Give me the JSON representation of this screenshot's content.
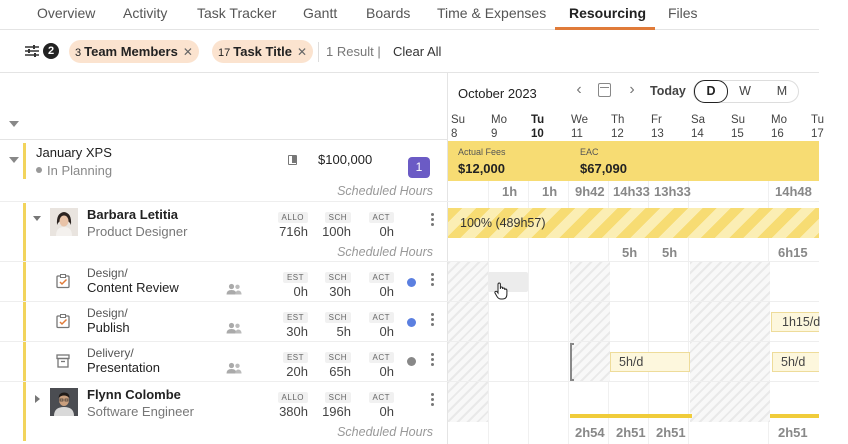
{
  "tabs": [
    {
      "label": "Overview"
    },
    {
      "label": "Activity"
    },
    {
      "label": "Task Tracker"
    },
    {
      "label": "Gantt"
    },
    {
      "label": "Boards"
    },
    {
      "label": "Time & Expenses"
    },
    {
      "label": "Resourcing",
      "active": true
    },
    {
      "label": "Files"
    }
  ],
  "filters": {
    "count": "2",
    "chips": [
      {
        "count": "3",
        "label": "Team Members"
      },
      {
        "count": "17",
        "label": "Task Title"
      }
    ],
    "results": "1 Result",
    "separator": "|",
    "clear_all": "Clear All"
  },
  "calendar": {
    "month": "October 2023",
    "today": "Today",
    "views": [
      "D",
      "W",
      "M"
    ],
    "active_view": "D",
    "days": [
      {
        "dow": "Su",
        "num": "8"
      },
      {
        "dow": "Mo",
        "num": "9"
      },
      {
        "dow": "Tu",
        "num": "10",
        "bold": true
      },
      {
        "dow": "We",
        "num": "11"
      },
      {
        "dow": "Th",
        "num": "12"
      },
      {
        "dow": "Fr",
        "num": "13"
      },
      {
        "dow": "Sa",
        "num": "14"
      },
      {
        "dow": "Su",
        "num": "15"
      },
      {
        "dow": "Mo",
        "num": "16"
      },
      {
        "dow": "Tu",
        "num": "17"
      }
    ]
  },
  "project": {
    "name": "January XPS",
    "status": "In Planning",
    "budget": "$100,000",
    "badge": "1",
    "scheduled_label": "Scheduled Hours",
    "actual_fees_label": "Actual Fees",
    "actual_fees": "$12,000",
    "eac_label": "EAC",
    "eac": "$67,090",
    "hours": [
      "1h",
      "1h",
      "9h42",
      "14h33",
      "13h33",
      "14h48"
    ]
  },
  "people": [
    {
      "name": "Barbara Letitia",
      "role": "Product Designer",
      "metrics": [
        {
          "tag": "ALLO",
          "value": "716h"
        },
        {
          "tag": "SCH",
          "value": "100h"
        },
        {
          "tag": "ACT",
          "value": "0h"
        }
      ],
      "allocation_label": "100% (489h57)",
      "scheduled_label": "Scheduled Hours",
      "hours": [
        "5h",
        "5h",
        "6h15"
      ]
    },
    {
      "name": "Flynn Colombe",
      "role": "Software Engineer",
      "metrics": [
        {
          "tag": "ALLO",
          "value": "380h"
        },
        {
          "tag": "SCH",
          "value": "196h"
        },
        {
          "tag": "ACT",
          "value": "0h"
        }
      ],
      "scheduled_label": "Scheduled Hours",
      "hours": [
        "2h54",
        "2h51",
        "2h51",
        "2h51"
      ]
    }
  ],
  "tasks": [
    {
      "category": "Design/",
      "title": "Content Review",
      "metrics": [
        {
          "tag": "EST",
          "value": "0h"
        },
        {
          "tag": "SCH",
          "value": "30h"
        },
        {
          "tag": "ACT",
          "value": "0h"
        }
      ],
      "status_color": "#5b7fe0"
    },
    {
      "category": "Design/",
      "title": "Publish",
      "metrics": [
        {
          "tag": "EST",
          "value": "30h"
        },
        {
          "tag": "SCH",
          "value": "5h"
        },
        {
          "tag": "ACT",
          "value": "0h"
        }
      ],
      "status_color": "#5b7fe0",
      "pill": "1h15/d"
    },
    {
      "category": "Delivery/",
      "title": "Presentation",
      "metrics": [
        {
          "tag": "EST",
          "value": "20h"
        },
        {
          "tag": "SCH",
          "value": "65h"
        },
        {
          "tag": "ACT",
          "value": "0h"
        }
      ],
      "status_color": "#888888",
      "pills": [
        "5h/d",
        "5h/d"
      ]
    }
  ],
  "colors": {
    "accent": "#e07b39",
    "chip_bg": "#fbe3cf",
    "fees_band": "#f7dc73",
    "badge": "#6b5bc5",
    "project_bar": "#f2d45c"
  }
}
